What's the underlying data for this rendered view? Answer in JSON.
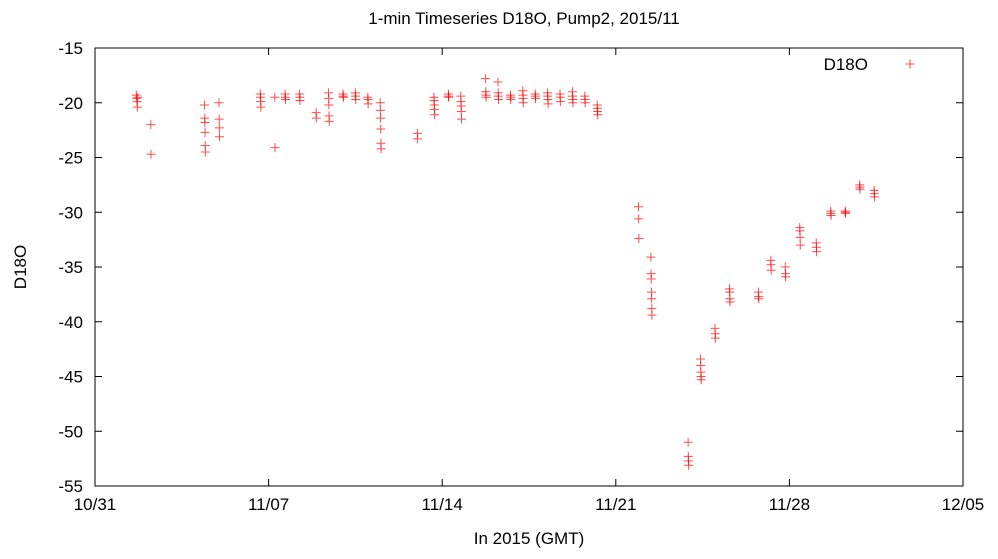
{
  "chart_data": {
    "type": "scatter",
    "title": "1-min Timeseries D18O, Pump2, 2015/11",
    "xlabel": "In 2015 (GMT)",
    "ylabel": "D18O",
    "xlim": [
      "2015-10-31",
      "2015-12-05"
    ],
    "ylim": [
      -55,
      -15
    ],
    "xticks": [
      "10/31",
      "11/07",
      "11/14",
      "11/21",
      "11/28",
      "12/05"
    ],
    "yticks": [
      "-15",
      "-20",
      "-25",
      "-30",
      "-35",
      "-40",
      "-45",
      "-50",
      "-55"
    ],
    "grid": false,
    "legend_position": "top-right",
    "marker": "plus",
    "color": "#ff0000",
    "series": [
      {
        "name": "D18O",
        "points": [
          [
            "2015-11-01T16:00",
            -19.3
          ],
          [
            "2015-11-01T16:20",
            -19.6
          ],
          [
            "2015-11-01T16:40",
            -19.9
          ],
          [
            "2015-11-01T17:00",
            -20.4
          ],
          [
            "2015-11-01T17:20",
            -19.5
          ],
          [
            "2015-11-02T06:00",
            -22.0
          ],
          [
            "2015-11-02T06:10",
            -24.7
          ],
          [
            "2015-11-04T10:00",
            -20.2
          ],
          [
            "2015-11-04T10:10",
            -21.4
          ],
          [
            "2015-11-04T10:20",
            -21.8
          ],
          [
            "2015-11-04T10:30",
            -22.7
          ],
          [
            "2015-11-04T10:40",
            -23.9
          ],
          [
            "2015-11-04T10:50",
            -24.5
          ],
          [
            "2015-11-05T00:00",
            -20.0
          ],
          [
            "2015-11-05T00:10",
            -21.5
          ],
          [
            "2015-11-05T00:20",
            -22.3
          ],
          [
            "2015-11-05T00:30",
            -23.1
          ],
          [
            "2015-11-06T16:00",
            -19.2
          ],
          [
            "2015-11-06T16:10",
            -19.5
          ],
          [
            "2015-11-06T16:20",
            -19.9
          ],
          [
            "2015-11-06T16:30",
            -20.4
          ],
          [
            "2015-11-07T06:00",
            -19.5
          ],
          [
            "2015-11-07T06:10",
            -24.1
          ],
          [
            "2015-11-07T16:00",
            -19.2
          ],
          [
            "2015-11-07T16:10",
            -19.5
          ],
          [
            "2015-11-07T16:20",
            -19.7
          ],
          [
            "2015-11-08T06:00",
            -19.2
          ],
          [
            "2015-11-08T06:10",
            -19.5
          ],
          [
            "2015-11-08T06:20",
            -19.8
          ],
          [
            "2015-11-08T22:00",
            -20.9
          ],
          [
            "2015-11-08T22:10",
            -21.4
          ],
          [
            "2015-11-09T10:00",
            -19.1
          ],
          [
            "2015-11-09T10:10",
            -19.6
          ],
          [
            "2015-11-09T10:20",
            -20.2
          ],
          [
            "2015-11-09T10:30",
            -21.2
          ],
          [
            "2015-11-09T10:40",
            -21.7
          ],
          [
            "2015-11-10T00:00",
            -19.2
          ],
          [
            "2015-11-10T00:10",
            -19.4
          ],
          [
            "2015-11-10T00:20",
            -19.5
          ],
          [
            "2015-11-10T12:00",
            -19.1
          ],
          [
            "2015-11-10T12:10",
            -19.4
          ],
          [
            "2015-11-10T12:20",
            -19.7
          ],
          [
            "2015-11-11T00:00",
            -19.5
          ],
          [
            "2015-11-11T00:10",
            -19.7
          ],
          [
            "2015-11-11T00:20",
            -20.1
          ],
          [
            "2015-11-11T12:00",
            -20.0
          ],
          [
            "2015-11-11T12:10",
            -20.7
          ],
          [
            "2015-11-11T12:20",
            -21.4
          ],
          [
            "2015-11-11T12:30",
            -22.4
          ],
          [
            "2015-11-11T12:40",
            -23.7
          ],
          [
            "2015-11-11T12:50",
            -24.2
          ],
          [
            "2015-11-13T00:00",
            -22.8
          ],
          [
            "2015-11-13T00:10",
            -23.3
          ],
          [
            "2015-11-13T16:00",
            -19.5
          ],
          [
            "2015-11-13T16:10",
            -19.8
          ],
          [
            "2015-11-13T16:20",
            -20.2
          ],
          [
            "2015-11-13T16:30",
            -20.6
          ],
          [
            "2015-11-13T16:40",
            -21.1
          ],
          [
            "2015-11-14T06:00",
            -19.2
          ],
          [
            "2015-11-14T06:10",
            -19.4
          ],
          [
            "2015-11-14T06:20",
            -19.5
          ],
          [
            "2015-11-14T18:00",
            -19.4
          ],
          [
            "2015-11-14T18:10",
            -19.9
          ],
          [
            "2015-11-14T18:20",
            -20.3
          ],
          [
            "2015-11-14T18:30",
            -20.8
          ],
          [
            "2015-11-14T18:40",
            -21.5
          ],
          [
            "2015-11-15T18:00",
            -17.8
          ],
          [
            "2015-11-15T18:10",
            -19.0
          ],
          [
            "2015-11-15T18:20",
            -19.3
          ],
          [
            "2015-11-15T18:30",
            -19.5
          ],
          [
            "2015-11-16T06:00",
            -18.1
          ],
          [
            "2015-11-16T06:10",
            -19.1
          ],
          [
            "2015-11-16T06:20",
            -19.4
          ],
          [
            "2015-11-16T06:30",
            -19.7
          ],
          [
            "2015-11-16T18:00",
            -19.3
          ],
          [
            "2015-11-16T18:10",
            -19.5
          ],
          [
            "2015-11-16T18:20",
            -19.7
          ],
          [
            "2015-11-17T06:00",
            -18.9
          ],
          [
            "2015-11-17T06:10",
            -19.3
          ],
          [
            "2015-11-17T06:20",
            -19.6
          ],
          [
            "2015-11-17T06:30",
            -20.0
          ],
          [
            "2015-11-17T18:00",
            -19.2
          ],
          [
            "2015-11-17T18:10",
            -19.4
          ],
          [
            "2015-11-17T18:20",
            -19.6
          ],
          [
            "2015-11-18T06:00",
            -19.1
          ],
          [
            "2015-11-18T06:10",
            -19.4
          ],
          [
            "2015-11-18T06:20",
            -19.7
          ],
          [
            "2015-11-18T06:30",
            -20.1
          ],
          [
            "2015-11-18T18:00",
            -19.2
          ],
          [
            "2015-11-18T18:10",
            -19.5
          ],
          [
            "2015-11-18T18:20",
            -19.9
          ],
          [
            "2015-11-19T06:00",
            -19.0
          ],
          [
            "2015-11-19T06:10",
            -19.4
          ],
          [
            "2015-11-19T06:20",
            -19.7
          ],
          [
            "2015-11-19T06:30",
            -20.0
          ],
          [
            "2015-11-19T18:00",
            -19.4
          ],
          [
            "2015-11-19T18:10",
            -19.7
          ],
          [
            "2015-11-19T18:20",
            -20.0
          ],
          [
            "2015-11-20T06:00",
            -20.2
          ],
          [
            "2015-11-20T06:10",
            -20.5
          ],
          [
            "2015-11-20T06:20",
            -20.8
          ],
          [
            "2015-11-20T06:30",
            -21.1
          ],
          [
            "2015-11-21T22:00",
            -29.5
          ],
          [
            "2015-11-21T22:10",
            -30.6
          ],
          [
            "2015-11-21T22:20",
            -32.4
          ],
          [
            "2015-11-22T10:00",
            -34.1
          ],
          [
            "2015-11-22T10:10",
            -35.6
          ],
          [
            "2015-11-22T10:20",
            -36.1
          ],
          [
            "2015-11-22T10:30",
            -37.3
          ],
          [
            "2015-11-22T10:40",
            -37.9
          ],
          [
            "2015-11-22T10:50",
            -38.8
          ],
          [
            "2015-11-22T11:00",
            -39.4
          ],
          [
            "2015-11-23T22:00",
            -51.0
          ],
          [
            "2015-11-23T22:10",
            -52.3
          ],
          [
            "2015-11-23T22:20",
            -52.7
          ],
          [
            "2015-11-23T22:30",
            -53.1
          ],
          [
            "2015-11-24T10:00",
            -43.4
          ],
          [
            "2015-11-24T10:10",
            -44.0
          ],
          [
            "2015-11-24T10:20",
            -44.6
          ],
          [
            "2015-11-24T10:30",
            -45.0
          ],
          [
            "2015-11-24T10:40",
            -45.3
          ],
          [
            "2015-11-25T00:00",
            -40.6
          ],
          [
            "2015-11-25T00:10",
            -41.1
          ],
          [
            "2015-11-25T00:20",
            -41.5
          ],
          [
            "2015-11-25T14:00",
            -37.0
          ],
          [
            "2015-11-25T14:10",
            -37.3
          ],
          [
            "2015-11-25T14:20",
            -37.9
          ],
          [
            "2015-11-25T14:30",
            -38.2
          ],
          [
            "2015-11-26T18:00",
            -37.3
          ],
          [
            "2015-11-26T18:10",
            -37.7
          ],
          [
            "2015-11-26T18:20",
            -37.9
          ],
          [
            "2015-11-27T06:00",
            -34.4
          ],
          [
            "2015-11-27T06:10",
            -34.8
          ],
          [
            "2015-11-27T06:20",
            -35.3
          ],
          [
            "2015-11-27T20:00",
            -35.0
          ],
          [
            "2015-11-27T20:10",
            -35.6
          ],
          [
            "2015-11-27T20:20",
            -35.9
          ],
          [
            "2015-11-28T10:00",
            -31.4
          ],
          [
            "2015-11-28T10:10",
            -31.7
          ],
          [
            "2015-11-28T10:20",
            -32.3
          ],
          [
            "2015-11-28T10:30",
            -33.0
          ],
          [
            "2015-11-29T02:00",
            -32.8
          ],
          [
            "2015-11-29T02:10",
            -33.2
          ],
          [
            "2015-11-29T02:20",
            -33.6
          ],
          [
            "2015-11-29T16:00",
            -29.9
          ],
          [
            "2015-11-29T16:10",
            -30.1
          ],
          [
            "2015-11-29T16:20",
            -30.3
          ],
          [
            "2015-11-30T06:00",
            -29.9
          ],
          [
            "2015-11-30T06:10",
            -30.0
          ],
          [
            "2015-11-30T06:20",
            -30.1
          ],
          [
            "2015-11-30T20:00",
            -27.5
          ],
          [
            "2015-11-30T20:10",
            -27.7
          ],
          [
            "2015-11-30T20:20",
            -27.9
          ],
          [
            "2015-12-01T10:00",
            -28.0
          ],
          [
            "2015-12-01T10:10",
            -28.3
          ],
          [
            "2015-12-01T10:20",
            -28.6
          ]
        ]
      }
    ]
  }
}
